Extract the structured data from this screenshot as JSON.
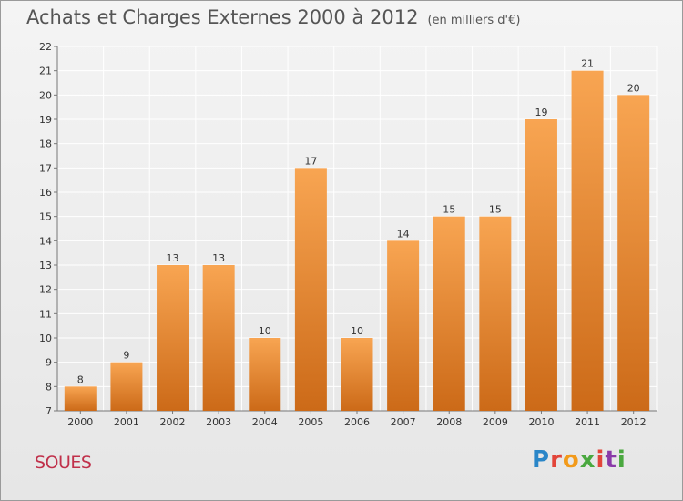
{
  "header": {
    "title": "Achats et Charges Externes 2000 à 2012",
    "unit": "(en milliers d'€)"
  },
  "footer": {
    "commune": "SOUES",
    "brand": "Proxiti"
  },
  "colors": {
    "bar_top": "#f8a552",
    "bar_bottom": "#cc6a18",
    "grid": "#ffffff",
    "title": "#555555",
    "commune": "#c0304a"
  },
  "chart_data": {
    "type": "bar",
    "categories": [
      "2000",
      "2001",
      "2002",
      "2003",
      "2004",
      "2005",
      "2006",
      "2007",
      "2008",
      "2009",
      "2010",
      "2011",
      "2012"
    ],
    "values": [
      8,
      9,
      13,
      13,
      10,
      17,
      10,
      14,
      15,
      15,
      19,
      21,
      20
    ],
    "title": "Achats et Charges Externes 2000 à 2012",
    "subtitle": "(en milliers d'€)",
    "xlabel": "",
    "ylabel": "",
    "ylim": [
      7,
      22
    ],
    "yticks": [
      7,
      8,
      9,
      10,
      11,
      12,
      13,
      14,
      15,
      16,
      17,
      18,
      19,
      20,
      21,
      22
    ],
    "grid": true,
    "data_labels": true
  }
}
